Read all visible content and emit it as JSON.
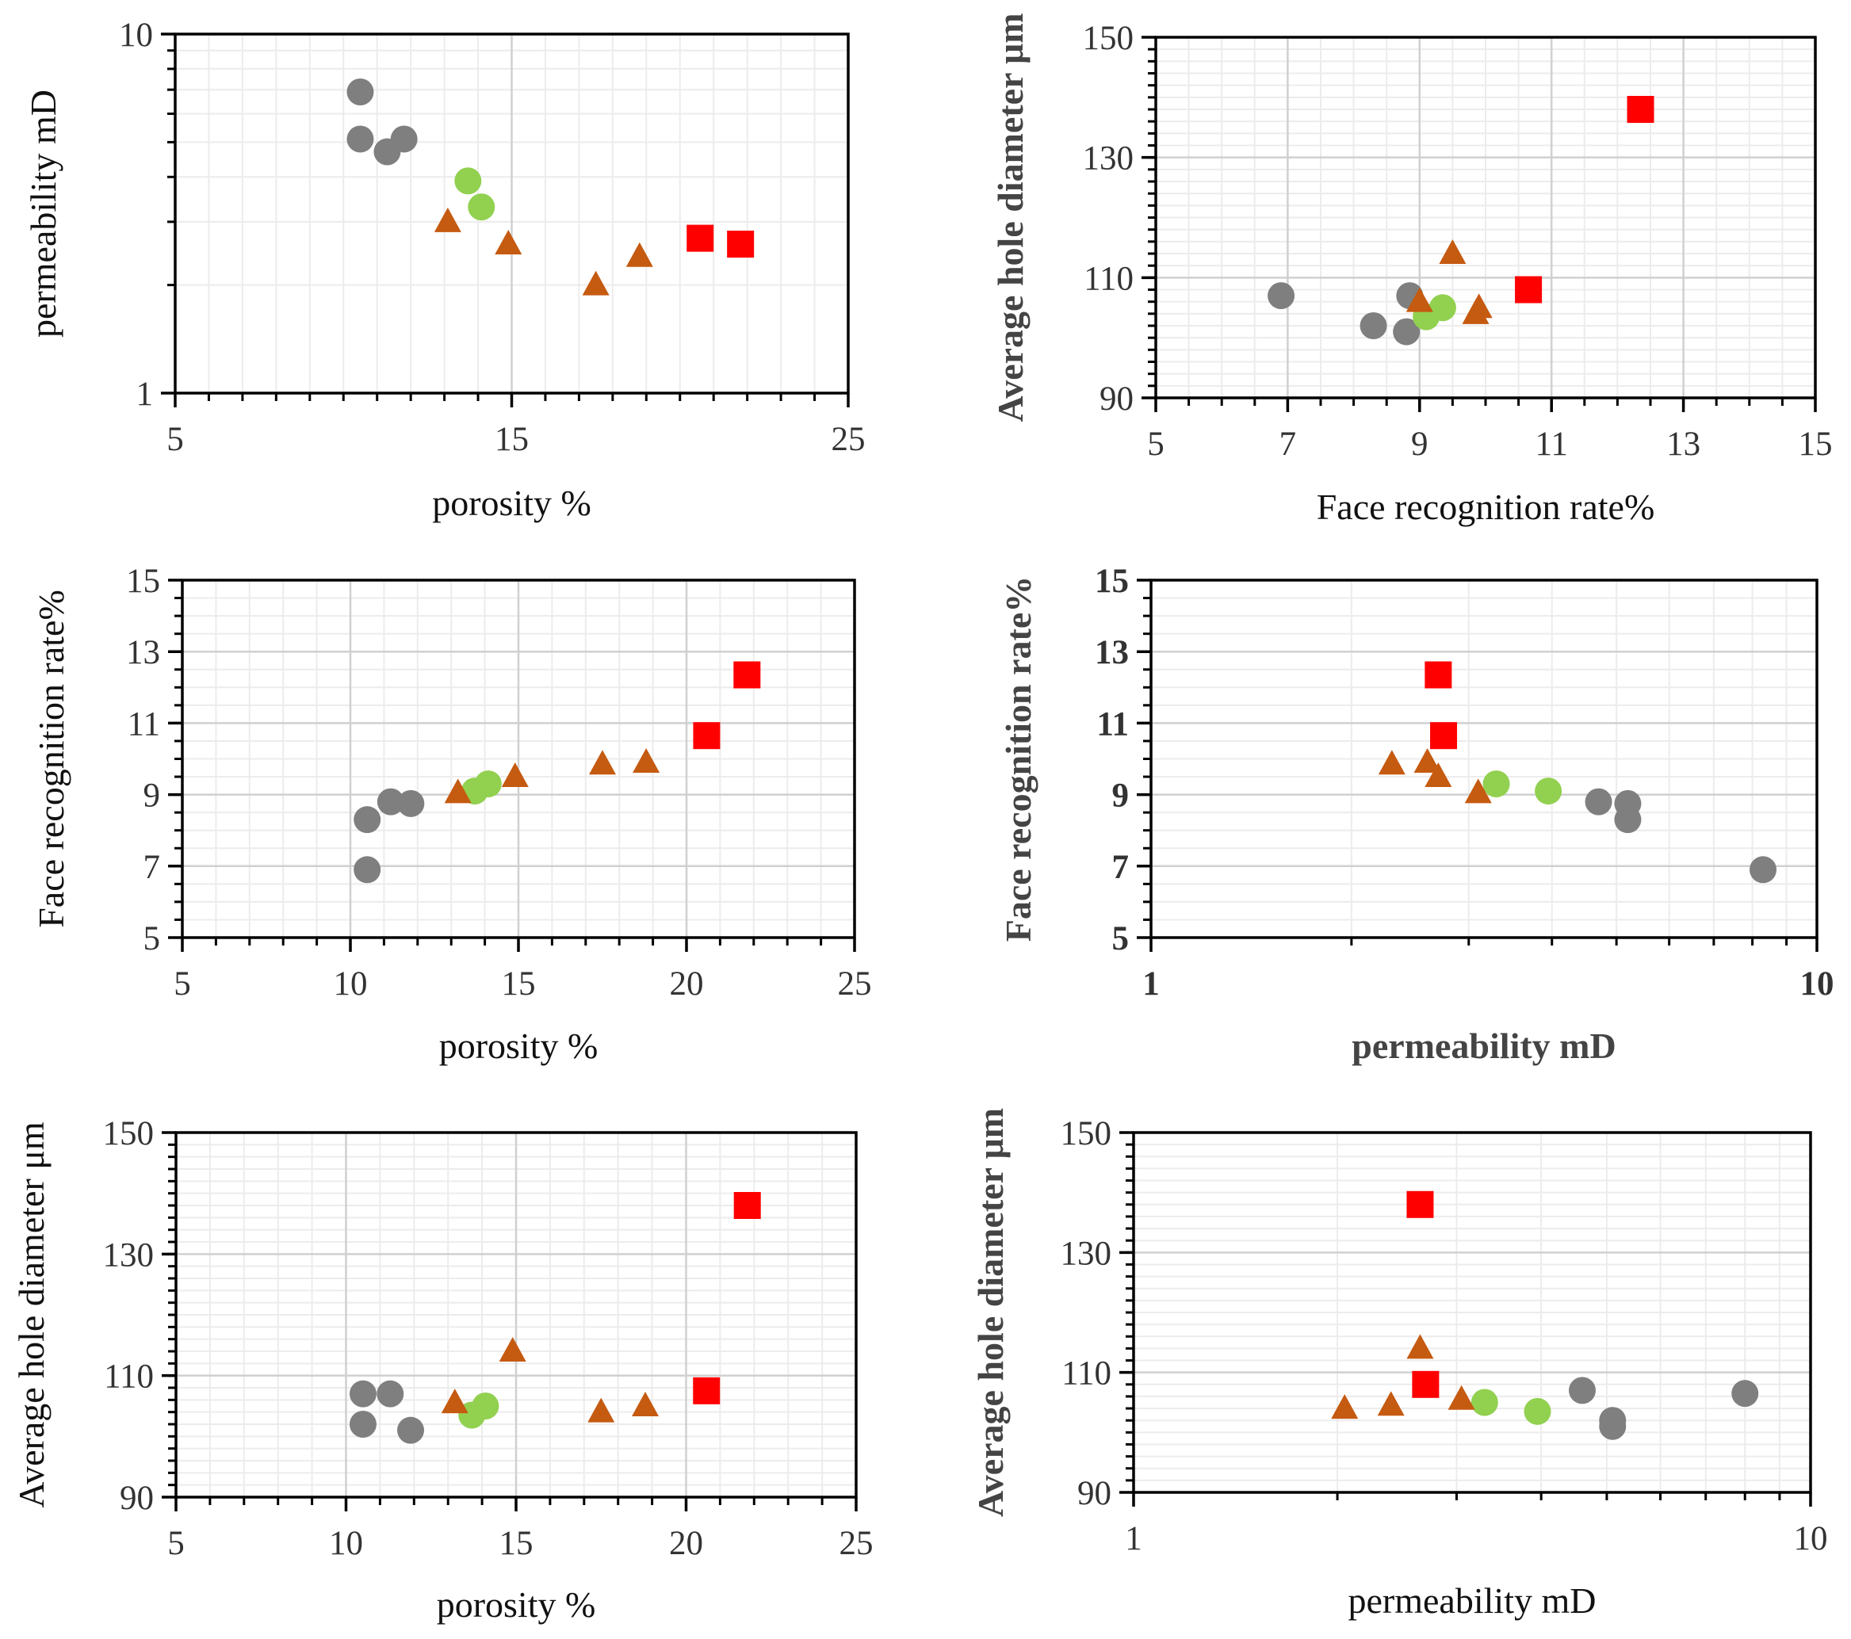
{
  "figure": {
    "description_free": true
  },
  "legend_colors": {
    "gray_circle": "#7f7f7f",
    "green_circle": "#92d050",
    "orange_triangle": "#c55a11",
    "red_square": "#ff0000"
  },
  "chart_data": [
    {
      "id": "a",
      "type": "scatter",
      "xlabel": "porosity %",
      "ylabel": "permeability mD",
      "xlim": [
        5,
        25
      ],
      "ylim": [
        1,
        10
      ],
      "xscale": "linear",
      "yscale": "log",
      "xticks": [
        5,
        15,
        25
      ],
      "yticks": [
        1,
        10
      ],
      "series": [
        {
          "name": "gray",
          "marker": "circle",
          "color": "#7f7f7f",
          "points": [
            [
              10.5,
              6.9
            ],
            [
              10.5,
              5.1
            ],
            [
              11.3,
              4.7
            ],
            [
              11.8,
              5.1
            ]
          ]
        },
        {
          "name": "green",
          "marker": "circle",
          "color": "#92d050",
          "points": [
            [
              13.7,
              3.9
            ],
            [
              14.1,
              3.3
            ]
          ]
        },
        {
          "name": "orange",
          "marker": "triangle",
          "color": "#c55a11",
          "points": [
            [
              13.1,
              3.0
            ],
            [
              14.9,
              2.6
            ],
            [
              17.5,
              2.0
            ],
            [
              18.8,
              2.4
            ]
          ]
        },
        {
          "name": "red",
          "marker": "square",
          "color": "#ff0000",
          "points": [
            [
              20.6,
              2.7
            ],
            [
              21.8,
              2.6
            ]
          ]
        }
      ]
    },
    {
      "id": "b",
      "type": "scatter",
      "xlabel": "Face recognition rate%",
      "ylabel": "Average hole diameter μm",
      "xlim": [
        5,
        15
      ],
      "ylim": [
        90,
        150
      ],
      "xscale": "linear",
      "yscale": "linear",
      "xticks": [
        5,
        7,
        9,
        11,
        13,
        15
      ],
      "yticks": [
        90,
        110,
        130,
        150
      ],
      "series": [
        {
          "name": "gray",
          "marker": "circle",
          "color": "#7f7f7f",
          "points": [
            [
              6.9,
              107
            ],
            [
              8.3,
              102
            ],
            [
              8.8,
              101
            ],
            [
              8.85,
              107
            ]
          ]
        },
        {
          "name": "green",
          "marker": "circle",
          "color": "#92d050",
          "points": [
            [
              9.1,
              103.5
            ],
            [
              9.35,
              105
            ]
          ]
        },
        {
          "name": "orange",
          "marker": "triangle",
          "color": "#c55a11",
          "points": [
            [
              9.0,
              106
            ],
            [
              9.5,
              114
            ],
            [
              9.85,
              104
            ],
            [
              9.9,
              105
            ]
          ]
        },
        {
          "name": "red",
          "marker": "square",
          "color": "#ff0000",
          "points": [
            [
              10.65,
              108
            ],
            [
              12.35,
              138
            ]
          ]
        }
      ]
    },
    {
      "id": "c",
      "type": "scatter",
      "xlabel": "porosity %",
      "ylabel": "Face recognition rate%",
      "xlim": [
        5,
        25
      ],
      "ylim": [
        5,
        15
      ],
      "xscale": "linear",
      "yscale": "linear",
      "xticks": [
        5,
        10,
        15,
        20,
        25
      ],
      "yticks": [
        5,
        7,
        9,
        11,
        13,
        15
      ],
      "series": [
        {
          "name": "gray",
          "marker": "circle",
          "color": "#7f7f7f",
          "points": [
            [
              10.5,
              6.9
            ],
            [
              10.5,
              8.3
            ],
            [
              11.2,
              8.8
            ],
            [
              11.8,
              8.75
            ]
          ]
        },
        {
          "name": "green",
          "marker": "circle",
          "color": "#92d050",
          "points": [
            [
              13.7,
              9.1
            ],
            [
              14.1,
              9.3
            ]
          ]
        },
        {
          "name": "orange",
          "marker": "triangle",
          "color": "#c55a11",
          "points": [
            [
              13.2,
              9.05
            ],
            [
              14.9,
              9.5
            ],
            [
              17.5,
              9.85
            ],
            [
              18.8,
              9.9
            ]
          ]
        },
        {
          "name": "red",
          "marker": "square",
          "color": "#ff0000",
          "points": [
            [
              20.6,
              10.65
            ],
            [
              21.8,
              12.35
            ]
          ]
        }
      ]
    },
    {
      "id": "d",
      "type": "scatter",
      "xlabel": "permeability mD",
      "ylabel": "Face recognition rate%",
      "xlim": [
        1,
        10
      ],
      "ylim": [
        5,
        15
      ],
      "xscale": "log",
      "yscale": "linear",
      "xticks": [
        1,
        10
      ],
      "yticks": [
        5,
        7,
        9,
        11,
        13,
        15
      ],
      "series": [
        {
          "name": "gray",
          "marker": "circle",
          "color": "#7f7f7f",
          "points": [
            [
              8.3,
              6.9
            ],
            [
              4.7,
              8.8
            ],
            [
              5.2,
              8.75
            ],
            [
              5.2,
              8.3
            ]
          ]
        },
        {
          "name": "green",
          "marker": "circle",
          "color": "#92d050",
          "points": [
            [
              3.3,
              9.3
            ],
            [
              3.95,
              9.1
            ]
          ]
        },
        {
          "name": "orange",
          "marker": "triangle",
          "color": "#c55a11",
          "points": [
            [
              2.3,
              9.85
            ],
            [
              2.6,
              9.9
            ],
            [
              2.7,
              9.5
            ],
            [
              3.1,
              9.05
            ]
          ]
        },
        {
          "name": "red",
          "marker": "square",
          "color": "#ff0000",
          "points": [
            [
              2.7,
              12.35
            ],
            [
              2.75,
              10.65
            ]
          ]
        }
      ]
    },
    {
      "id": "e",
      "type": "scatter",
      "xlabel": "porosity %",
      "ylabel": "Average hole diameter μm",
      "xlim": [
        5,
        25
      ],
      "ylim": [
        90,
        150
      ],
      "xscale": "linear",
      "yscale": "linear",
      "xticks": [
        5,
        10,
        15,
        20,
        25
      ],
      "yticks": [
        90,
        110,
        130,
        150
      ],
      "series": [
        {
          "name": "gray",
          "marker": "circle",
          "color": "#7f7f7f",
          "points": [
            [
              10.5,
              107
            ],
            [
              10.5,
              102
            ],
            [
              11.3,
              107
            ],
            [
              11.9,
              101
            ]
          ]
        },
        {
          "name": "green",
          "marker": "circle",
          "color": "#92d050",
          "points": [
            [
              13.7,
              103.5
            ],
            [
              14.1,
              105
            ]
          ]
        },
        {
          "name": "orange",
          "marker": "triangle",
          "color": "#c55a11",
          "points": [
            [
              13.2,
              105.5
            ],
            [
              14.9,
              114
            ],
            [
              17.5,
              104
            ],
            [
              18.8,
              105
            ]
          ]
        },
        {
          "name": "red",
          "marker": "square",
          "color": "#ff0000",
          "points": [
            [
              20.6,
              107.5
            ],
            [
              21.8,
              138
            ]
          ]
        }
      ]
    },
    {
      "id": "f",
      "type": "scatter",
      "xlabel": "permeability mD",
      "ylabel": "Average hole diameter μm",
      "xlim": [
        1,
        10
      ],
      "ylim": [
        90,
        150
      ],
      "xscale": "log",
      "yscale": "linear",
      "xticks": [
        1,
        10
      ],
      "yticks": [
        90,
        110,
        130,
        150
      ],
      "series": [
        {
          "name": "gray",
          "marker": "circle",
          "color": "#7f7f7f",
          "points": [
            [
              4.6,
              107
            ],
            [
              5.1,
              102
            ],
            [
              5.1,
              101
            ],
            [
              8.0,
              106.5
            ]
          ]
        },
        {
          "name": "green",
          "marker": "circle",
          "color": "#92d050",
          "points": [
            [
              3.3,
              105
            ],
            [
              3.95,
              103.5
            ]
          ]
        },
        {
          "name": "orange",
          "marker": "triangle",
          "color": "#c55a11",
          "points": [
            [
              2.05,
              104
            ],
            [
              2.4,
              104.5
            ],
            [
              2.65,
              114
            ],
            [
              3.05,
              105.5
            ]
          ]
        },
        {
          "name": "red",
          "marker": "square",
          "color": "#ff0000",
          "points": [
            [
              2.65,
              138
            ],
            [
              2.7,
              108
            ]
          ]
        }
      ]
    }
  ]
}
